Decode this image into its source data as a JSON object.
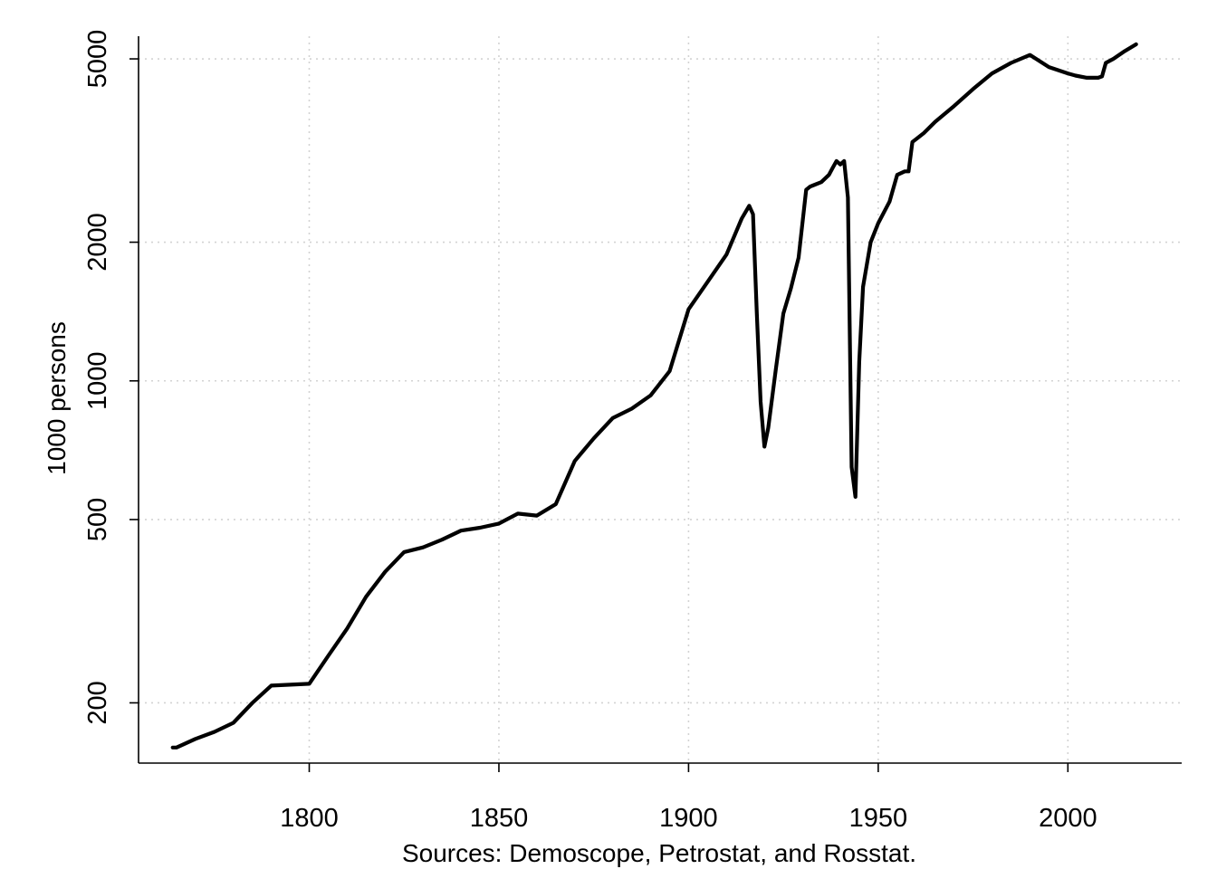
{
  "chart_data": {
    "type": "line",
    "title": "",
    "xlabel": "Sources: Demoscope, Petrostat, and Rosstat.",
    "ylabel": "1000 persons",
    "xlim": [
      1755,
      2030
    ],
    "ylim": [
      148,
      5600
    ],
    "y_scale": "log",
    "grid": true,
    "legend": "none",
    "x_ticks": [
      1800,
      1850,
      1900,
      1950,
      2000
    ],
    "y_ticks": [
      200,
      500,
      1000,
      2000,
      5000
    ],
    "line_color": "#000000",
    "grid_color": "#d3d3d3",
    "series": [
      {
        "x": [
          1764,
          1765,
          1770,
          1775,
          1780,
          1785,
          1790,
          1795,
          1800,
          1805,
          1810,
          1815,
          1820,
          1825,
          1830,
          1835,
          1840,
          1845,
          1850,
          1855,
          1860,
          1865,
          1870,
          1875,
          1880,
          1885,
          1890,
          1895,
          1900,
          1905,
          1910,
          1914,
          1916,
          1917,
          1918,
          1919,
          1920,
          1921,
          1923,
          1925,
          1927,
          1929,
          1931,
          1932,
          1933,
          1935,
          1937,
          1938,
          1939,
          1940,
          1941,
          1942,
          1943,
          1944,
          1945,
          1946,
          1948,
          1950,
          1953,
          1955,
          1957,
          1958,
          1959,
          1960,
          1962,
          1965,
          1970,
          1975,
          1980,
          1985,
          1990,
          1995,
          2000,
          2002,
          2005,
          2008,
          2009,
          2010,
          2012,
          2015,
          2018
        ],
        "y": [
          160,
          160,
          167,
          173,
          181,
          200,
          218,
          219,
          220,
          253,
          290,
          340,
          385,
          425,
          435,
          452,
          473,
          480,
          490,
          515,
          510,
          540,
          670,
          750,
          830,
          870,
          930,
          1050,
          1430,
          1640,
          1880,
          2250,
          2400,
          2300,
          1400,
          900,
          720,
          790,
          1060,
          1400,
          1590,
          1850,
          2600,
          2640,
          2660,
          2700,
          2800,
          2900,
          3000,
          2950,
          3000,
          2500,
          650,
          560,
          1100,
          1600,
          2000,
          2200,
          2450,
          2800,
          2850,
          2850,
          3300,
          3350,
          3450,
          3650,
          3950,
          4300,
          4650,
          4900,
          5100,
          4800,
          4650,
          4600,
          4550,
          4550,
          4580,
          4900,
          5000,
          5200,
          5380
        ]
      }
    ]
  }
}
